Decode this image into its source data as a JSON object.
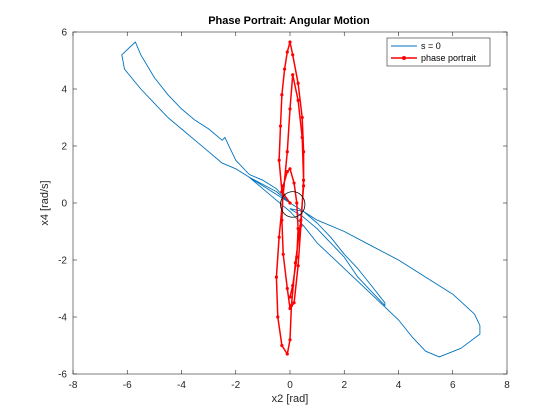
{
  "chart_data": {
    "type": "line",
    "title": "Phase Portrait: Angular Motion",
    "xlabel": "x2 [rad]",
    "ylabel": "x4 [rad/s]",
    "xlim": [
      -8,
      8
    ],
    "ylim": [
      -6,
      6
    ],
    "xticks": [
      "-8",
      "-6",
      "-4",
      "-2",
      "0",
      "2",
      "4",
      "6",
      "8"
    ],
    "yticks": [
      "-6",
      "-4",
      "-2",
      "0",
      "2",
      "4",
      "6"
    ],
    "legend_position": "top-right",
    "series": [
      {
        "name": "s = 0",
        "color": "#0072BD",
        "marker": "none",
        "x": [
          0.0,
          -0.5,
          -1.0,
          -1.5,
          -2.0,
          -2.3,
          -2.4,
          -2.5,
          -3.0,
          -3.5,
          -4.0,
          -4.5,
          -5.0,
          -5.5,
          -5.7,
          -6.2,
          -6.1,
          -5.5,
          -5.0,
          -4.5,
          -4.0,
          -3.5,
          -3.0,
          -2.5,
          -2.0,
          -1.5,
          -1.0,
          -0.5,
          0.0,
          0.5,
          1.0,
          1.5,
          2.0,
          2.5,
          3.0,
          3.5,
          3.5,
          3.0,
          2.5,
          2.0,
          1.5,
          1.0,
          0.5,
          0.0,
          0.5,
          1.0,
          2.0,
          3.0,
          4.0,
          5.0,
          6.0,
          6.8,
          7.0,
          7.0,
          6.3,
          5.5,
          5.0,
          4.5,
          4.0,
          3.0,
          2.0,
          1.0,
          0.5,
          0.0,
          -0.5,
          -1.0,
          -1.5,
          -0.5,
          0.0
        ],
        "y": [
          0.0,
          0.5,
          0.8,
          1.0,
          1.5,
          2.1,
          2.3,
          2.2,
          2.6,
          2.9,
          3.3,
          3.8,
          4.4,
          5.2,
          5.65,
          5.2,
          4.7,
          4.0,
          3.5,
          3.0,
          2.6,
          2.2,
          1.8,
          1.4,
          1.2,
          0.9,
          0.6,
          0.3,
          0.0,
          -0.3,
          -0.7,
          -1.2,
          -1.8,
          -2.3,
          -2.9,
          -3.5,
          -3.6,
          -3.1,
          -2.6,
          -1.9,
          -1.4,
          -0.9,
          -0.5,
          -0.2,
          -0.3,
          -0.6,
          -1.0,
          -1.5,
          -2.0,
          -2.6,
          -3.2,
          -3.9,
          -4.3,
          -4.6,
          -5.1,
          -5.4,
          -5.2,
          -4.7,
          -4.1,
          -3.2,
          -2.3,
          -1.4,
          -0.8,
          -0.3,
          0.1,
          0.5,
          0.9,
          0.4,
          0.0
        ]
      },
      {
        "name": "phase portrait",
        "color": "#FF0000",
        "marker": "dot",
        "x": [
          0.0,
          -0.3,
          -0.4,
          -0.35,
          -0.3,
          -0.2,
          -0.1,
          0.0,
          0.1,
          0.3,
          0.45,
          0.5,
          0.5,
          0.4,
          0.2,
          0.05,
          0.0,
          -0.1,
          -0.3,
          -0.45,
          -0.5,
          -0.4,
          -0.25,
          -0.1,
          0.0,
          0.1,
          0.3,
          0.45,
          0.5,
          0.4,
          0.3,
          0.15,
          0.0,
          -0.1,
          -0.25,
          -0.3,
          -0.25,
          -0.1,
          0.0,
          0.15,
          0.25,
          0.3,
          0.25,
          0.1,
          0.0
        ],
        "y": [
          0.0,
          0.4,
          1.5,
          2.7,
          3.8,
          4.7,
          5.3,
          5.65,
          5.2,
          4.2,
          3.0,
          1.8,
          0.6,
          -0.6,
          -2.1,
          -3.6,
          -4.8,
          -5.3,
          -5.0,
          -4.0,
          -2.6,
          -1.2,
          0.3,
          1.8,
          3.3,
          4.5,
          3.6,
          2.3,
          0.8,
          -0.8,
          -2.2,
          -3.5,
          -3.7,
          -3.0,
          -1.8,
          -0.6,
          0.6,
          1.1,
          1.2,
          0.7,
          0.0,
          -0.9,
          -1.9,
          -2.9,
          -3.3
        ]
      }
    ],
    "annotations": [
      {
        "type": "circle",
        "cx": 0.1,
        "cy": -0.05,
        "r": 0.45,
        "color": "#000000"
      }
    ]
  }
}
